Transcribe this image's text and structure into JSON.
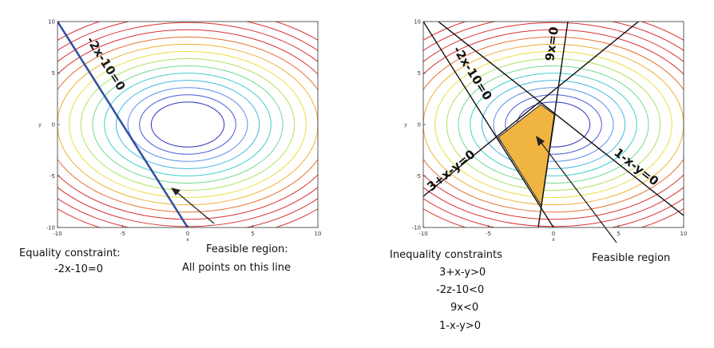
{
  "left_panel": {
    "axes": {
      "xlim": [
        -10,
        10
      ],
      "ylim": [
        -10,
        10
      ],
      "xticks": [
        "-10",
        "-5",
        "0",
        "5",
        "10"
      ],
      "yticks": [
        "10",
        "5",
        "0",
        "-5",
        "-10"
      ],
      "xlabel": "x",
      "ylabel": "y"
    },
    "line_label": "-2x-10=0",
    "line_color": "#3050a0",
    "caption": [
      "Equality constraint:",
      "-2x-10=0"
    ],
    "annotation": [
      "Feasible region:",
      "All points on this line"
    ]
  },
  "right_panel": {
    "axes": {
      "xlim": [
        -10,
        10
      ],
      "ylim": [
        -10,
        10
      ],
      "xticks": [
        "-10",
        "-5",
        "0",
        "5",
        "10"
      ],
      "yticks": [
        "10",
        "5",
        "0",
        "-5",
        "-10"
      ],
      "xlabel": "x",
      "ylabel": "y"
    },
    "line_labels": [
      "-2x-10=0",
      "9x=0",
      "3+x-y=0",
      "1-x-y=0"
    ],
    "caption": [
      "Inequality constraints",
      "3+x-y>0",
      "-2z-10<0",
      "9x<0",
      "1-x-y>0"
    ],
    "annotation": "Feasible region",
    "region_color": "#f0b440"
  },
  "contour_colors": [
    "#3030c0",
    "#4a5ad8",
    "#5a8ee8",
    "#40b8e0",
    "#40d0c8",
    "#70d890",
    "#b0e060",
    "#e8e040",
    "#f0b030",
    "#e87030",
    "#d83030"
  ],
  "contour_levels_x": [
    2.8,
    3.7,
    4.6,
    5.5,
    6.4,
    7.3,
    8.2,
    9.1,
    10.0,
    10.9,
    11.8,
    12.7,
    13.6,
    14.5
  ]
}
